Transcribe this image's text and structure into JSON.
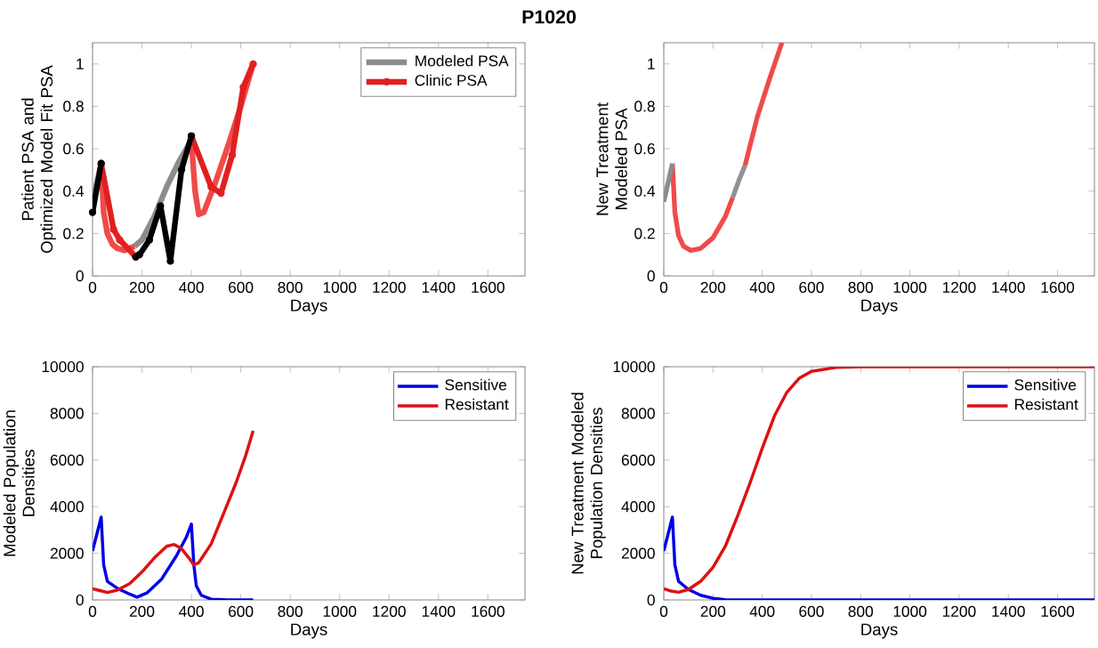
{
  "chart_data": [
    {
      "type": "line",
      "title": "P1020",
      "xlabel": "Days",
      "ylabel": "Patient PSA and Optimized Model Fit PSA",
      "xlim": [
        0,
        1750
      ],
      "xticks": [
        0,
        200,
        400,
        600,
        800,
        1000,
        1200,
        1400,
        1600
      ],
      "ylim": [
        0,
        1.1
      ],
      "yticks": [
        0,
        0.2,
        0.4,
        0.6,
        0.8,
        1
      ],
      "grid": false,
      "legend": "top right",
      "series": [
        {
          "name": "Modeled PSA",
          "color": "#8c8c8c",
          "marker": "none",
          "x": [
            0,
            35,
            100,
            170,
            200,
            250,
            300,
            350,
            400
          ],
          "values": [
            0.35,
            0.53,
            null,
            0.14,
            0.17,
            0.28,
            0.42,
            0.54,
            0.64
          ]
        },
        {
          "color": "#f04a4a",
          "marker": "none",
          "x": [
            35,
            45,
            60,
            80,
            100,
            130,
            170,
            290,
            400,
            415,
            430,
            450,
            500,
            550,
            600,
            650
          ],
          "values": [
            0.53,
            0.3,
            0.2,
            0.15,
            0.13,
            0.12,
            0.14,
            null,
            0.64,
            0.4,
            0.29,
            0.3,
            0.45,
            0.62,
            0.8,
            1.0
          ]
        },
        {
          "name": "Clinic PSA",
          "color": "#e02020",
          "marker": "circle",
          "x": [
            35,
            85,
            110,
            175,
            290,
            400,
            480,
            520,
            565,
            610,
            650
          ],
          "values": [
            0.53,
            0.22,
            0.17,
            0.09,
            null,
            0.66,
            0.42,
            0.39,
            0.57,
            0.89,
            1.0
          ]
        },
        {
          "color": "#000000",
          "marker": "circle",
          "x": [
            0,
            35,
            100,
            175,
            190,
            230,
            275,
            315,
            360,
            400
          ],
          "values": [
            0.3,
            0.53,
            null,
            0.09,
            0.1,
            0.17,
            0.33,
            0.07,
            0.5,
            0.66
          ]
        }
      ]
    },
    {
      "type": "line",
      "xlabel": "Days",
      "ylabel": "New Treatment Modeled PSA",
      "xlim": [
        0,
        1750
      ],
      "xticks": [
        0,
        200,
        400,
        600,
        800,
        1000,
        1200,
        1400,
        1600
      ],
      "ylim": [
        0,
        1.1
      ],
      "yticks": [
        0,
        0.2,
        0.4,
        0.6,
        0.8,
        1
      ],
      "grid": false,
      "legend": false,
      "series": [
        {
          "color": "#f04a4a",
          "marker": "none",
          "x": [
            35,
            45,
            60,
            80,
            110,
            150,
            200,
            250,
            280
          ],
          "values": [
            0.53,
            0.3,
            0.19,
            0.14,
            0.12,
            0.13,
            0.18,
            0.28,
            0.37
          ]
        },
        {
          "color": "#f04a4a",
          "marker": "none",
          "x": [
            330,
            380,
            430,
            480
          ],
          "values": [
            0.52,
            0.75,
            0.93,
            1.1
          ]
        },
        {
          "color": "#8c8c8c",
          "marker": "none",
          "x": [
            0,
            35
          ],
          "values": [
            0.35,
            0.53
          ]
        },
        {
          "color": "#919191",
          "marker": "none",
          "x": [
            280,
            305,
            330
          ],
          "values": [
            0.37,
            0.45,
            0.52
          ]
        }
      ]
    },
    {
      "type": "line",
      "xlabel": "Days",
      "ylabel": "Modeled Population Densities",
      "xlim": [
        0,
        1750
      ],
      "xticks": [
        0,
        200,
        400,
        600,
        800,
        1000,
        1200,
        1400,
        1600
      ],
      "ylim": [
        0,
        10000
      ],
      "yticks": [
        0,
        2000,
        4000,
        6000,
        8000,
        10000
      ],
      "grid": false,
      "legend": "top right",
      "series": [
        {
          "name": "Sensitive",
          "color": "#0000e6",
          "marker": "none",
          "x": [
            0,
            35,
            45,
            60,
            100,
            150,
            180,
            220,
            280,
            340,
            380,
            400,
            410,
            420,
            440,
            480,
            550,
            650
          ],
          "values": [
            2100,
            3550,
            1500,
            800,
            500,
            250,
            120,
            300,
            900,
            1900,
            2700,
            3250,
            1500,
            600,
            200,
            30,
            0,
            0
          ]
        },
        {
          "name": "Resistant",
          "color": "#dd1111",
          "marker": "none",
          "x": [
            0,
            30,
            60,
            100,
            150,
            200,
            250,
            300,
            330,
            360,
            390,
            410,
            430,
            480,
            530,
            580,
            620,
            650
          ],
          "values": [
            480,
            400,
            320,
            420,
            700,
            1200,
            1800,
            2300,
            2380,
            2200,
            1800,
            1500,
            1600,
            2400,
            3700,
            5000,
            6200,
            7250
          ]
        }
      ]
    },
    {
      "type": "line",
      "xlabel": "Days",
      "ylabel": "New Treatment Modeled Population Densities",
      "xlim": [
        0,
        1750
      ],
      "xticks": [
        0,
        200,
        400,
        600,
        800,
        1000,
        1200,
        1400,
        1600
      ],
      "ylim": [
        0,
        10000
      ],
      "yticks": [
        0,
        2000,
        4000,
        6000,
        8000,
        10000
      ],
      "grid": false,
      "legend": "top right",
      "series": [
        {
          "name": "Sensitive",
          "color": "#0000e6",
          "marker": "none",
          "x": [
            0,
            35,
            45,
            60,
            100,
            150,
            200,
            250,
            300,
            1750
          ],
          "values": [
            2100,
            3550,
            1500,
            800,
            450,
            200,
            70,
            10,
            0,
            0
          ]
        },
        {
          "name": "Resistant",
          "color": "#dd1111",
          "marker": "none",
          "x": [
            0,
            30,
            60,
            100,
            150,
            200,
            250,
            300,
            350,
            400,
            450,
            500,
            550,
            600,
            700,
            800,
            1750
          ],
          "values": [
            480,
            380,
            330,
            450,
            800,
            1400,
            2300,
            3600,
            5000,
            6500,
            7900,
            8900,
            9500,
            9800,
            9970,
            10000,
            10000
          ]
        }
      ]
    }
  ]
}
